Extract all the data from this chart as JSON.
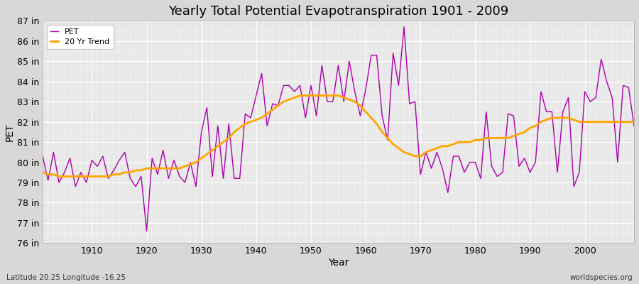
{
  "title": "Yearly Total Potential Evapotranspiration 1901 - 2009",
  "xlabel": "Year",
  "ylabel": "PET",
  "footer_left": "Latitude 20.25 Longitude -16.25",
  "footer_right": "worldspecies.org",
  "pet_color": "#AA00AA",
  "trend_color": "#FFA500",
  "bg_color": "#D8D8D8",
  "plot_bg_color": "#E8E8E8",
  "grid_color": "#FFFFFF",
  "ylim": [
    76,
    87
  ],
  "ytick_labels": [
    "76 in",
    "77 in",
    "78 in",
    "79 in",
    "80 in",
    "81 in",
    "82 in",
    "83 in",
    "84 in",
    "85 in",
    "86 in",
    "87 in"
  ],
  "ytick_values": [
    76,
    77,
    78,
    79,
    80,
    81,
    82,
    83,
    84,
    85,
    86,
    87
  ],
  "xtick_values": [
    1910,
    1920,
    1930,
    1940,
    1950,
    1960,
    1970,
    1980,
    1990,
    2000
  ],
  "years": [
    1901,
    1902,
    1903,
    1904,
    1905,
    1906,
    1907,
    1908,
    1909,
    1910,
    1911,
    1912,
    1913,
    1914,
    1915,
    1916,
    1917,
    1918,
    1919,
    1920,
    1921,
    1922,
    1923,
    1924,
    1925,
    1926,
    1927,
    1928,
    1929,
    1930,
    1931,
    1932,
    1933,
    1934,
    1935,
    1936,
    1937,
    1938,
    1939,
    1940,
    1941,
    1942,
    1943,
    1944,
    1945,
    1946,
    1947,
    1948,
    1949,
    1950,
    1951,
    1952,
    1953,
    1954,
    1955,
    1956,
    1957,
    1958,
    1959,
    1960,
    1961,
    1962,
    1963,
    1964,
    1965,
    1966,
    1967,
    1968,
    1969,
    1970,
    1971,
    1972,
    1973,
    1974,
    1975,
    1976,
    1977,
    1978,
    1979,
    1980,
    1981,
    1982,
    1983,
    1984,
    1985,
    1986,
    1987,
    1988,
    1989,
    1990,
    1991,
    1992,
    1993,
    1994,
    1995,
    1996,
    1997,
    1998,
    1999,
    2000,
    2001,
    2002,
    2003,
    2004,
    2005,
    2006,
    2007,
    2008,
    2009
  ],
  "pet_values": [
    80.3,
    79.1,
    80.5,
    79.0,
    79.5,
    80.2,
    78.8,
    79.5,
    79.0,
    80.1,
    79.8,
    80.3,
    79.2,
    79.6,
    80.1,
    80.5,
    79.2,
    78.8,
    79.3,
    76.6,
    80.2,
    79.4,
    80.6,
    79.2,
    80.1,
    79.3,
    79.0,
    80.0,
    78.8,
    81.5,
    82.7,
    79.3,
    81.8,
    79.2,
    81.9,
    79.2,
    79.2,
    82.4,
    82.2,
    83.3,
    84.4,
    81.8,
    82.9,
    82.8,
    83.8,
    83.8,
    83.5,
    83.8,
    82.2,
    83.8,
    82.3,
    84.8,
    83.0,
    83.0,
    84.8,
    83.0,
    85.0,
    83.5,
    82.3,
    83.6,
    85.3,
    85.3,
    82.3,
    81.1,
    85.4,
    83.8,
    86.7,
    82.9,
    83.0,
    79.4,
    80.5,
    79.7,
    80.5,
    79.7,
    78.5,
    80.3,
    80.3,
    79.5,
    80.0,
    80.0,
    79.2,
    82.5,
    79.8,
    79.3,
    79.5,
    82.4,
    82.3,
    79.8,
    80.2,
    79.5,
    80.0,
    83.5,
    82.5,
    82.5,
    79.5,
    82.5,
    83.2,
    78.8,
    79.5,
    83.5,
    83.0,
    83.2,
    85.1,
    84.0,
    83.2,
    80.0,
    83.8,
    83.7,
    81.8
  ],
  "trend_values": [
    79.5,
    79.4,
    79.4,
    79.3,
    79.3,
    79.3,
    79.3,
    79.3,
    79.3,
    79.3,
    79.3,
    79.3,
    79.3,
    79.4,
    79.4,
    79.5,
    79.5,
    79.6,
    79.6,
    79.7,
    79.7,
    79.7,
    79.7,
    79.7,
    79.7,
    79.7,
    79.8,
    79.9,
    80.0,
    80.2,
    80.4,
    80.6,
    80.8,
    81.0,
    81.2,
    81.5,
    81.7,
    81.9,
    82.0,
    82.1,
    82.2,
    82.4,
    82.6,
    82.8,
    83.0,
    83.1,
    83.2,
    83.3,
    83.3,
    83.3,
    83.3,
    83.3,
    83.3,
    83.3,
    83.3,
    83.2,
    83.1,
    83.0,
    82.8,
    82.5,
    82.2,
    81.9,
    81.5,
    81.2,
    80.9,
    80.7,
    80.5,
    80.4,
    80.3,
    80.3,
    80.5,
    80.6,
    80.7,
    80.8,
    80.8,
    80.9,
    81.0,
    81.0,
    81.0,
    81.1,
    81.1,
    81.2,
    81.2,
    81.2,
    81.2,
    81.2,
    81.3,
    81.4,
    81.5,
    81.7,
    81.8,
    82.0,
    82.1,
    82.2,
    82.2,
    82.2,
    82.2,
    82.1,
    82.0,
    82.0,
    82.0,
    82.0,
    82.0,
    82.0,
    82.0,
    82.0,
    82.0,
    82.0,
    82.0
  ]
}
